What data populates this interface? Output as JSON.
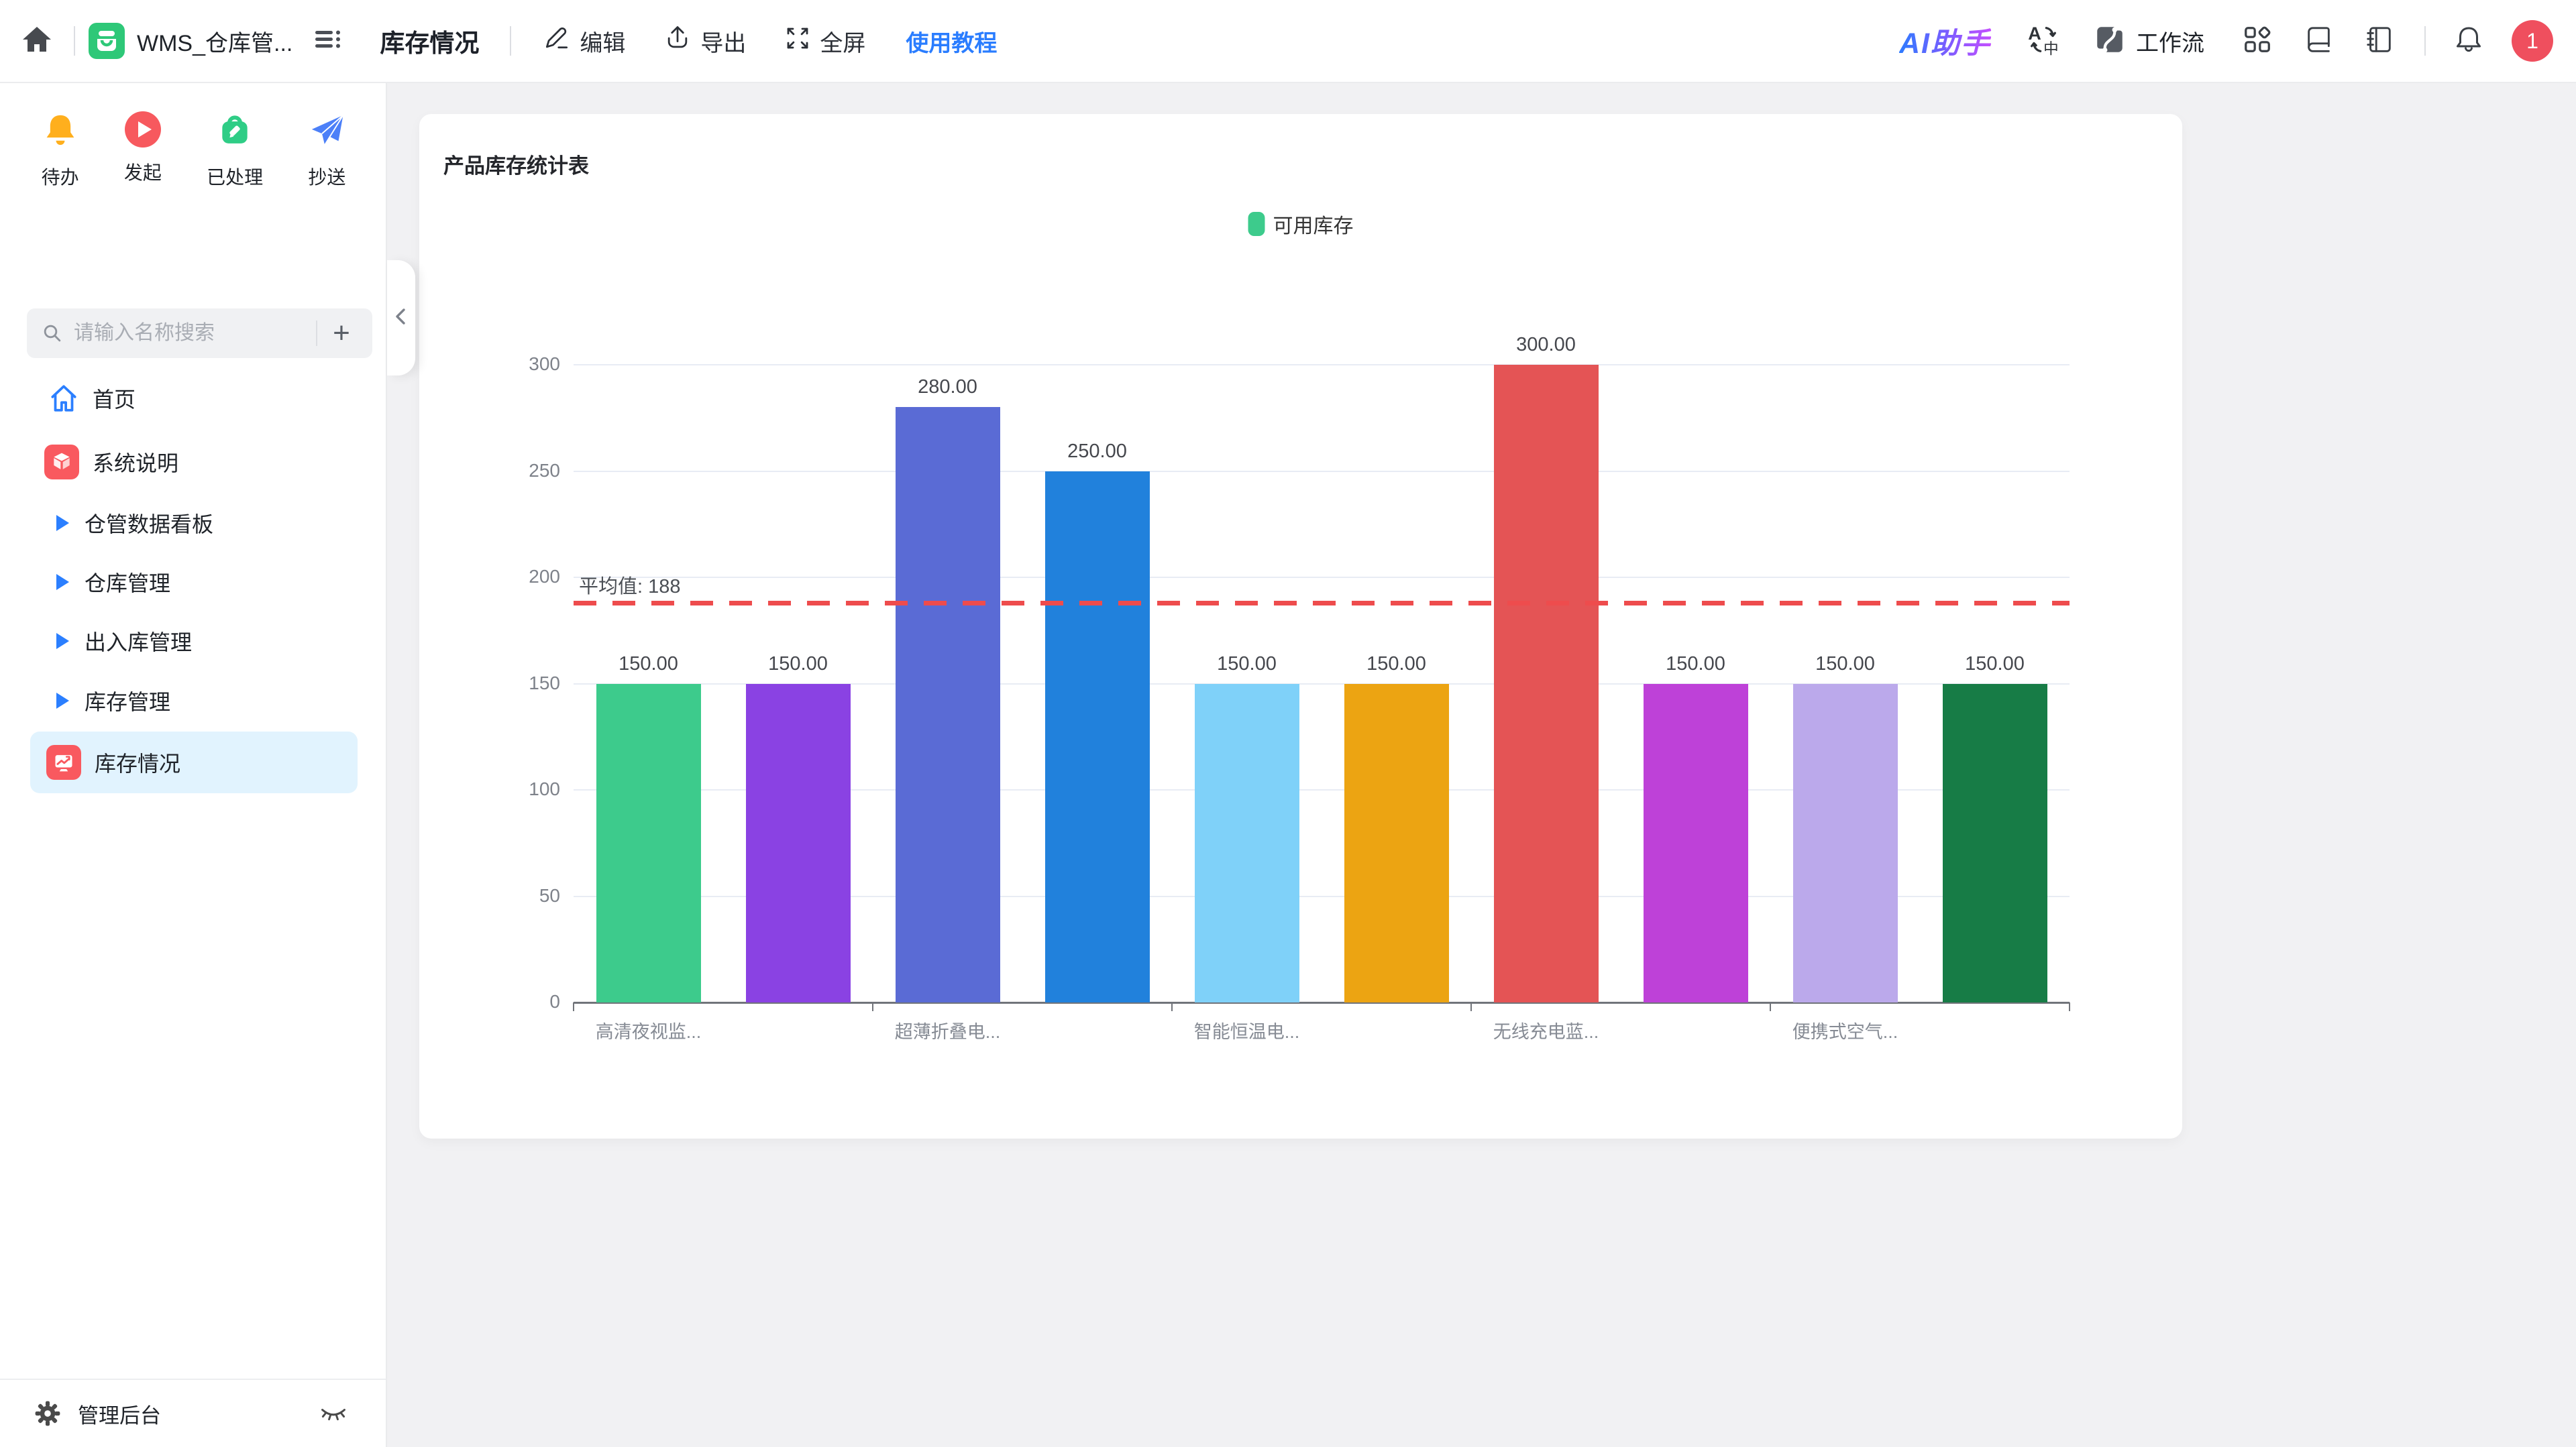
{
  "topbar": {
    "app_title": "WMS_仓库管...",
    "page_title": "库存情况",
    "edit_label": "编辑",
    "export_label": "导出",
    "fullscreen_label": "全屏",
    "tutorial_label": "使用教程",
    "ai_assistant_label": "AI助手",
    "workflow_label": "工作流",
    "notification_badge": "1"
  },
  "sidebar": {
    "quick_actions": [
      {
        "label": "待办",
        "icon": "bell-icon"
      },
      {
        "label": "发起",
        "icon": "play-icon"
      },
      {
        "label": "已处理",
        "icon": "bag-pencil-icon"
      },
      {
        "label": "抄送",
        "icon": "paper-plane-icon"
      }
    ],
    "search": {
      "placeholder": "请输入名称搜索",
      "add_button": "+"
    },
    "menu": [
      {
        "label": "首页",
        "icon": "home-outline-icon",
        "selected": false
      },
      {
        "label": "系统说明",
        "icon": "cube-icon",
        "selected": false
      },
      {
        "label": "仓管数据看板",
        "icon": "expand-triangle-icon",
        "selected": false
      },
      {
        "label": "仓库管理",
        "icon": "expand-triangle-icon",
        "selected": false
      },
      {
        "label": "出入库管理",
        "icon": "expand-triangle-icon",
        "selected": false
      },
      {
        "label": "库存管理",
        "icon": "expand-triangle-icon",
        "selected": false
      },
      {
        "label": "库存情况",
        "icon": "monitor-chart-icon",
        "selected": true
      }
    ],
    "admin_label": "管理后台"
  },
  "main": {
    "card_title": "产品库存统计表"
  },
  "chart_data": {
    "type": "bar",
    "title": "产品库存统计表",
    "legend": [
      "可用库存"
    ],
    "legend_color": "#3DCB8C",
    "legend_position": "top-center",
    "categories": [
      "高清夜视监...",
      "",
      "超薄折叠电...",
      "",
      "智能恒温电...",
      "",
      "无线充电蓝...",
      "",
      "便携式空气...",
      ""
    ],
    "x_label_interval": 2,
    "values": [
      150,
      150,
      280,
      250,
      150,
      150,
      300,
      150,
      150,
      150
    ],
    "value_labels": [
      "150.00",
      "150.00",
      "280.00",
      "250.00",
      "150.00",
      "150.00",
      "300.00",
      "150.00",
      "150.00",
      "150.00"
    ],
    "bar_colors": [
      "#3DCB8C",
      "#8A42E3",
      "#5A6BD5",
      "#2181DC",
      "#7FD1F9",
      "#ECA412",
      "#E45455",
      "#BE41D8",
      "#BBA9EB",
      "#177C46"
    ],
    "ylim": [
      0,
      300
    ],
    "ytick_step": 50,
    "grid": true,
    "average_line": {
      "value": 188,
      "label": "平均值: 188",
      "color": "#EE4C4D",
      "style": "dashed"
    }
  }
}
